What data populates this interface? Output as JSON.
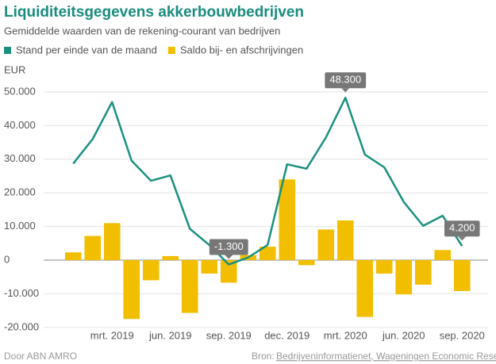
{
  "chart_data": {
    "type": "combo",
    "title": "Liquiditeitsgegevens akkerbouwbedrijven",
    "subtitle": "Gemiddelde waarden van de rekening-courant van bedrijven",
    "y_label": "EUR",
    "footer": "Door ABN AMRO",
    "source": "Bron:",
    "source_link": "Bedrijveninformatienet, Wageningen Economic Research",
    "categories": [
      null,
      null,
      "mrt. 2019",
      null,
      null,
      "jun. 2019",
      null,
      null,
      "sep. 2019",
      null,
      null,
      "dec. 2019",
      null,
      null,
      "mrt. 2020",
      null,
      null,
      "jun. 2020",
      null,
      null,
      "sep. 2020"
    ],
    "series": [
      {
        "name": "Stand per einde van de maand",
        "type": "line",
        "color": "#1a9080",
        "values": [
          28700,
          36000,
          47000,
          29600,
          23600,
          25200,
          9300,
          4500,
          -1300,
          800,
          4500,
          28500,
          27200,
          36500,
          48300,
          31400,
          27600,
          17300,
          10200,
          13200,
          4200
        ],
        "value_labels": [
          null,
          null,
          null,
          null,
          null,
          null,
          null,
          null,
          "-1.300",
          null,
          null,
          null,
          null,
          null,
          "48.300",
          null,
          null,
          null,
          null,
          null,
          "4.200"
        ]
      },
      {
        "name": "Saldo bij- en afschrijvingen",
        "type": "bar",
        "color": "#f2be00",
        "values": [
          2300,
          7200,
          11000,
          -17500,
          -6000,
          1200,
          -15700,
          -4000,
          -6700,
          1500,
          4000,
          24000,
          -1500,
          9100,
          11800,
          -16900,
          -4000,
          -10200,
          -7300,
          3000,
          -9200
        ]
      }
    ],
    "ylim": [
      -22000,
      55000
    ],
    "yticks": [
      {
        "value": -20000,
        "label": "-20.000"
      },
      {
        "value": -10000,
        "label": "-10.000"
      },
      0,
      {
        "value": 10000,
        "label": "10.000"
      },
      {
        "value": 20000,
        "label": "20.000"
      },
      {
        "value": 30000,
        "label": "30.000"
      },
      {
        "value": 40000,
        "label": "40.000"
      },
      {
        "value": 50000,
        "label": "50.000"
      }
    ],
    "grid": true
  }
}
